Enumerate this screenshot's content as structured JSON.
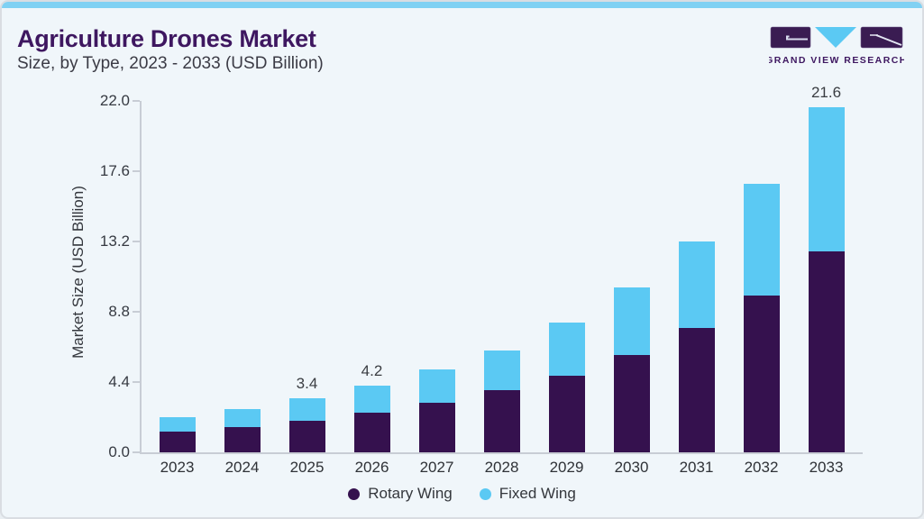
{
  "header": {
    "title": "Agriculture Drones Market",
    "subtitle": "Size, by Type, 2023 - 2033 (USD Billion)",
    "logo_brand": "GRAND VIEW RESEARCH"
  },
  "chart_data": {
    "type": "bar",
    "stacked": true,
    "title": "Agriculture Drones Market Size, by Type, 2023 - 2033 (USD Billion)",
    "categories": [
      "2023",
      "2024",
      "2025",
      "2026",
      "2027",
      "2028",
      "2029",
      "2030",
      "2031",
      "2032",
      "2033"
    ],
    "series": [
      {
        "name": "Rotary Wing",
        "color": "#35114e",
        "values": [
          1.3,
          1.6,
          2.0,
          2.5,
          3.1,
          3.9,
          4.8,
          6.1,
          7.8,
          9.8,
          12.6
        ]
      },
      {
        "name": "Fixed Wing",
        "color": "#5bc9f3",
        "values": [
          0.9,
          1.1,
          1.4,
          1.7,
          2.1,
          2.5,
          3.3,
          4.2,
          5.4,
          7.0,
          9.0
        ]
      }
    ],
    "bar_total_labels": [
      "",
      "",
      "3.4",
      "4.2",
      "",
      "",
      "",
      "",
      "",
      "",
      "21.6"
    ],
    "ylabel": "Market Size (USD Billion)",
    "yticks": [
      {
        "value": 0,
        "label": "0.0"
      },
      {
        "value": 4.4,
        "label": "4.4"
      },
      {
        "value": 8.8,
        "label": "8.8"
      },
      {
        "value": 13.2,
        "label": "13.2"
      },
      {
        "value": 17.6,
        "label": "17.6"
      },
      {
        "value": 22,
        "label": "22.0"
      }
    ],
    "ylim": [
      0,
      22
    ],
    "grid": false,
    "legend_position": "bottom"
  },
  "colors": {
    "background": "#f0f6fa",
    "top_strip": "#80d1f3",
    "title_text": "#3e1760",
    "subtitle_text": "#3b3b45",
    "axis_line": "#c8cdd5",
    "rotary_wing": "#35114e",
    "fixed_wing": "#5bc9f3"
  }
}
